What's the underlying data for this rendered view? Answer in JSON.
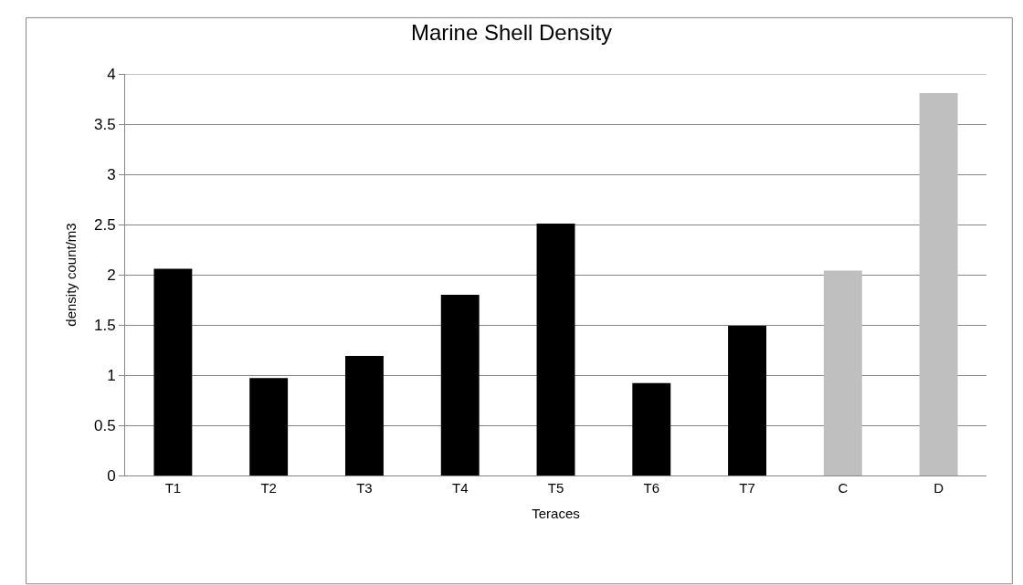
{
  "chart_data": {
    "type": "bar",
    "title": "Marine Shell Density",
    "xlabel": "Teraces",
    "ylabel": "density count/m3",
    "categories": [
      "T1",
      "T2",
      "T3",
      "T4",
      "T5",
      "T6",
      "T7",
      "C",
      "D"
    ],
    "values": [
      2.06,
      0.97,
      1.19,
      1.8,
      2.51,
      0.92,
      1.49,
      2.04,
      3.81
    ],
    "colors": [
      "#000000",
      "#000000",
      "#000000",
      "#000000",
      "#000000",
      "#000000",
      "#000000",
      "#bfbfbf",
      "#bfbfbf"
    ],
    "ylim": [
      0,
      4
    ],
    "yticks": [
      0,
      0.5,
      1,
      1.5,
      2,
      2.5,
      3,
      3.5,
      4
    ],
    "grid": "y"
  }
}
